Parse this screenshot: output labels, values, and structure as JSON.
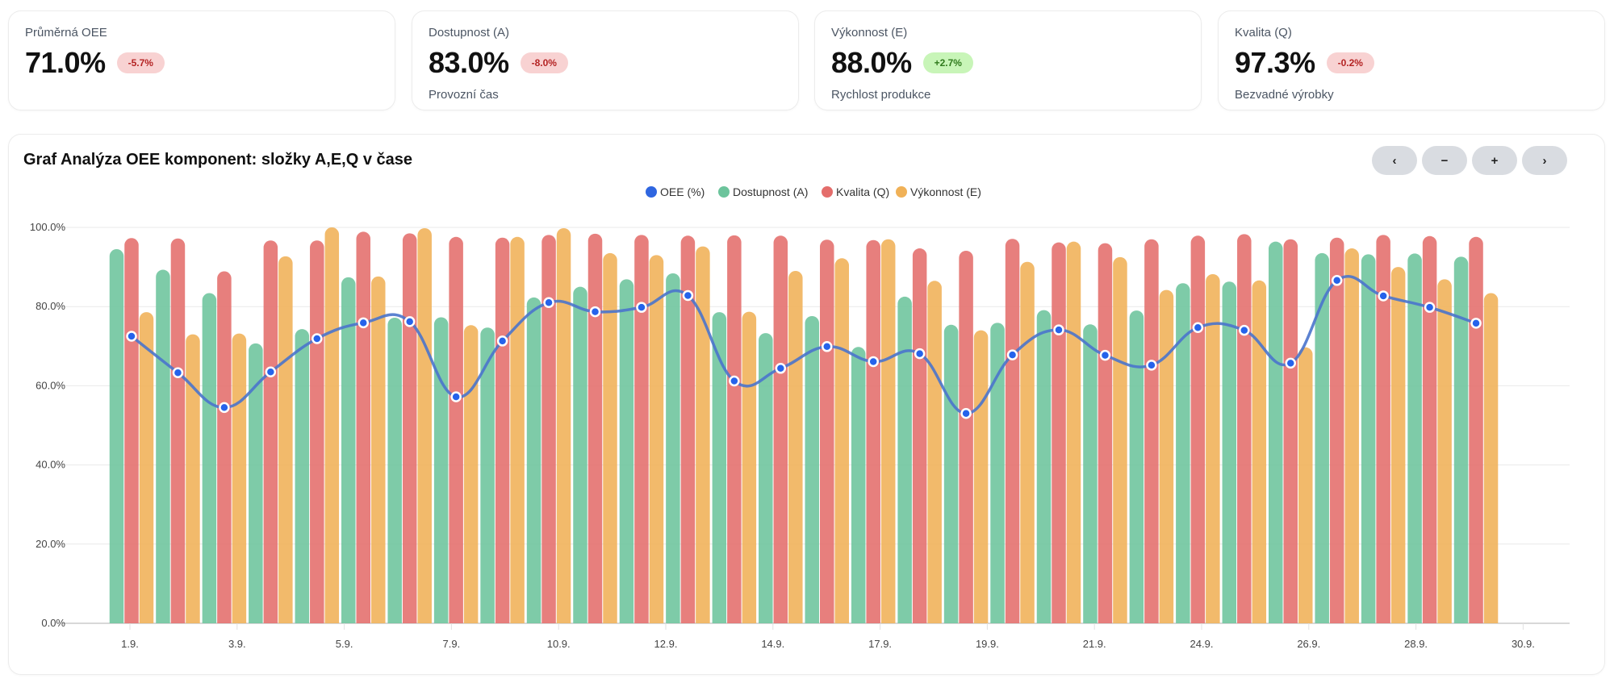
{
  "kpis": [
    {
      "label": "Průměrná OEE",
      "value": "71.0%",
      "delta": "-5.7%",
      "trend": "negative",
      "sub": ""
    },
    {
      "label": "Dostupnost (A)",
      "value": "83.0%",
      "delta": "-8.0%",
      "trend": "negative",
      "sub": "Provozní čas"
    },
    {
      "label": "Výkonnost (E)",
      "value": "88.0%",
      "delta": "+2.7%",
      "trend": "positive",
      "sub": "Rychlost produkce"
    },
    {
      "label": "Kvalita (Q)",
      "value": "97.3%",
      "delta": "-0.2%",
      "trend": "negative",
      "sub": "Bezvadné výrobky"
    }
  ],
  "chart_card": {
    "title": "Graf Analýza OEE komponent: složky A,E,Q v čase",
    "buttons": [
      {
        "label": "‹",
        "name": "prev-button"
      },
      {
        "label": "−",
        "name": "zoom-out-button"
      },
      {
        "label": "+",
        "name": "zoom-in-button"
      },
      {
        "label": "›",
        "name": "next-button"
      }
    ]
  },
  "chart_data": {
    "type": "bar",
    "title": "",
    "xlabel": "",
    "ylabel": "",
    "ylim": [
      0,
      100
    ],
    "y_ticks": [
      "0.0%",
      "20.0%",
      "40.0%",
      "60.0%",
      "80.0%",
      "100.0%"
    ],
    "x_tick_labels": [
      "1.9.",
      "3.9.",
      "5.9.",
      "7.9.",
      "10.9.",
      "12.9.",
      "14.9.",
      "17.9.",
      "19.9.",
      "21.9.",
      "24.9.",
      "26.9.",
      "28.9.",
      "30.9."
    ],
    "grid": true,
    "legend": "top-center",
    "categories": [
      "1.9.",
      "2.9.",
      "3.9.",
      "4.9.",
      "5.9.",
      "6.9.",
      "7.9.",
      "8.9.",
      "9.9.",
      "10.9.",
      "11.9.",
      "12.9.",
      "13.9.",
      "14.9.",
      "15.9.",
      "16.9.",
      "17.9.",
      "18.9.",
      "19.9.",
      "20.9.",
      "21.9.",
      "22.9.",
      "23.9.",
      "24.9.",
      "25.9.",
      "26.9.",
      "27.9.",
      "28.9.",
      "29.9.",
      "30.9."
    ],
    "series": [
      {
        "name": "OEE (%)",
        "type": "line",
        "color": "#2f66e0",
        "values": [
          72.5,
          63.3,
          54.5,
          63.5,
          71.9,
          75.9,
          76.2,
          57.2,
          71.3,
          81.0,
          78.7,
          79.8,
          82.8,
          61.2,
          64.4,
          69.9,
          66.1,
          68.1,
          53.0,
          67.8,
          74.1,
          67.7,
          65.2,
          74.7,
          74.0,
          65.7,
          86.6,
          82.7,
          79.8,
          75.8
        ]
      },
      {
        "name": "Dostupnost (A)",
        "type": "bar",
        "color": "#6cc49c",
        "values": [
          94.5,
          89.3,
          83.4,
          70.7,
          74.3,
          87.4,
          77.2,
          77.3,
          74.7,
          82.3,
          85.0,
          86.9,
          88.4,
          78.6,
          73.3,
          77.6,
          69.8,
          82.5,
          75.4,
          75.9,
          79.1,
          75.5,
          79.0,
          85.9,
          86.3,
          96.4,
          93.5,
          93.2,
          93.4,
          92.6
        ]
      },
      {
        "name": "Kvalita (Q)",
        "type": "bar",
        "color": "#e46d6b",
        "values": [
          97.3,
          97.2,
          88.9,
          96.7,
          96.7,
          98.9,
          98.5,
          97.6,
          97.4,
          98.1,
          98.4,
          98.1,
          97.9,
          98.0,
          97.9,
          96.9,
          96.8,
          94.7,
          94.1,
          97.1,
          96.2,
          96.0,
          97.0,
          97.9,
          98.3,
          97.0,
          97.4,
          98.1,
          97.8,
          97.6
        ]
      },
      {
        "name": "Výkonnost (E)",
        "type": "bar",
        "color": "#f0b157",
        "values": [
          78.6,
          73.0,
          73.2,
          92.7,
          100.0,
          87.6,
          99.8,
          75.3,
          97.6,
          99.8,
          93.5,
          93.0,
          95.2,
          78.7,
          89.0,
          92.2,
          97.0,
          86.5,
          74.0,
          91.3,
          96.4,
          92.5,
          84.2,
          88.2,
          86.6,
          69.7,
          94.7,
          90.0,
          86.9,
          83.4
        ]
      }
    ]
  }
}
